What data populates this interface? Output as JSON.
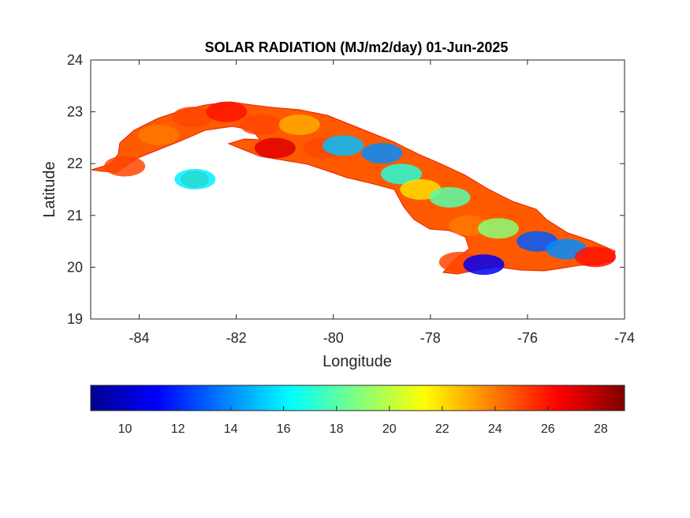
{
  "chart_data": {
    "type": "heatmap",
    "title": "SOLAR RADIATION (MJ/m2/day) 01-Jun-2025",
    "xlabel": "Longitude",
    "ylabel": "Latitude",
    "xlim": [
      -85,
      -74
    ],
    "ylim": [
      19,
      24
    ],
    "xticks": [
      -84,
      -82,
      -80,
      -78,
      -76,
      -74
    ],
    "yticks": [
      19,
      20,
      21,
      22,
      23,
      24
    ],
    "colorbar": {
      "colormap": "jet",
      "orientation": "horizontal",
      "placement": "below",
      "range": [
        8.7,
        28.9
      ],
      "ticks": [
        10,
        12,
        14,
        16,
        18,
        20,
        22,
        24,
        26,
        28
      ]
    },
    "regions": [
      {
        "name": "",
        "lon": -84.3,
        "lat": 21.95,
        "value": 25
      },
      {
        "name": "",
        "lon": -83.6,
        "lat": 22.55,
        "value": 24
      },
      {
        "name": "",
        "lon": -82.9,
        "lat": 22.9,
        "value": 25
      },
      {
        "name": "",
        "lon": -82.2,
        "lat": 23.0,
        "value": 26
      },
      {
        "name": "",
        "lon": -81.5,
        "lat": 22.75,
        "value": 25
      },
      {
        "name": "",
        "lon": -81.2,
        "lat": 22.3,
        "value": 27
      },
      {
        "name": "",
        "lon": -80.7,
        "lat": 22.75,
        "value": 23
      },
      {
        "name": "",
        "lon": -80.2,
        "lat": 22.3,
        "value": 25
      },
      {
        "name": "",
        "lon": -79.8,
        "lat": 22.35,
        "value": 15
      },
      {
        "name": "",
        "lon": -79.0,
        "lat": 22.2,
        "value": 14
      },
      {
        "name": "",
        "lon": -78.6,
        "lat": 21.8,
        "value": 17
      },
      {
        "name": "",
        "lon": -78.2,
        "lat": 21.5,
        "value": 22
      },
      {
        "name": "",
        "lon": -77.6,
        "lat": 21.35,
        "value": 18
      },
      {
        "name": "",
        "lon": -77.2,
        "lat": 20.8,
        "value": 24
      },
      {
        "name": "",
        "lon": -76.6,
        "lat": 20.75,
        "value": 19
      },
      {
        "name": "",
        "lon": -75.8,
        "lat": 20.5,
        "value": 13
      },
      {
        "name": "",
        "lon": -75.2,
        "lat": 20.35,
        "value": 14
      },
      {
        "name": "",
        "lon": -74.6,
        "lat": 20.2,
        "value": 26
      },
      {
        "name": "",
        "lon": -77.4,
        "lat": 20.1,
        "value": 25
      },
      {
        "name": "",
        "lon": -76.9,
        "lat": 20.05,
        "value": 11
      },
      {
        "name": "",
        "lon": -82.85,
        "lat": 21.7,
        "value": 16
      }
    ]
  }
}
